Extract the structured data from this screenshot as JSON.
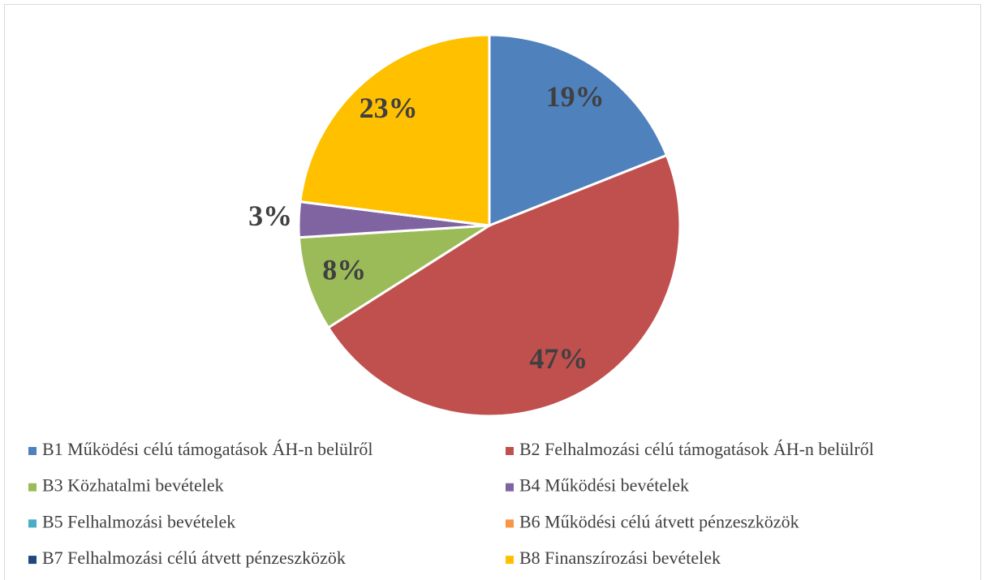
{
  "chart_data": {
    "type": "pie",
    "categories": [
      "B1 Működési célú támogatások ÁH-n belülről",
      "B2 Felhalmozási célú támogatások ÁH-n belülről",
      "B3 Közhatalmi bevételek",
      "B4 Működési bevételek",
      "B5 Felhalmozási bevételek",
      "B6 Működési célú átvett pénzeszközök",
      "B7 Felhalmozási célú átvett pénzeszközök",
      "B8 Finanszírozási bevételek"
    ],
    "values": [
      19,
      47,
      8,
      3,
      0,
      0,
      0,
      23
    ],
    "value_labels": [
      "19%",
      "47%",
      "8%",
      "3%",
      null,
      null,
      null,
      "23%"
    ],
    "colors": [
      "#4f81bd",
      "#c0504d",
      "#9bbb59",
      "#8064a2",
      "#4bacc6",
      "#f79646",
      "#1f497d",
      "#ffc000"
    ],
    "legend": "bottom"
  }
}
